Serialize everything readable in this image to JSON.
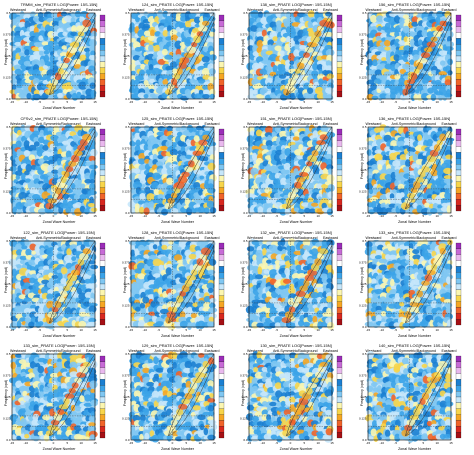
{
  "chart_data": [
    {
      "type": "heatmap",
      "title": "TRMM_sim_PRATE LOG[Power: 15S-15N]"
    },
    {
      "type": "heatmap",
      "title": "124_sim_PRATE LOG[Power: 15S-15N]"
    },
    {
      "type": "heatmap",
      "title": "138_sim_PRATE LOG[Power: 15S-15N]"
    },
    {
      "type": "heatmap",
      "title": "156_sim_PRATE LOG[Power: 15S-15N]"
    },
    {
      "type": "heatmap",
      "title": "CFSv2_sim_PRATE LOG[Power: 15S-15N]"
    },
    {
      "type": "heatmap",
      "title": "125_sim_PRATE LOG[Power: 15S-15N]"
    },
    {
      "type": "heatmap",
      "title": "151_sim_PRATE LOG[Power: 15S-15N]"
    },
    {
      "type": "heatmap",
      "title": "136_sim_PRATE LOG[Power: 15S-15N]"
    },
    {
      "type": "heatmap",
      "title": "122_sim_PRATE LOG[Power: 15S-15N]"
    },
    {
      "type": "heatmap",
      "title": "128_sim_PRATE LOG[Power: 15S-15N]"
    },
    {
      "type": "heatmap",
      "title": "132_sim_PRATE LOG[Power: 15S-15N]"
    },
    {
      "type": "heatmap",
      "title": "133_sim_PRATE LOG[Power: 15S-15N]"
    },
    {
      "type": "heatmap",
      "title": "133_sim_PRATE LOG[Power: 15S-15N]"
    },
    {
      "type": "heatmap",
      "title": "129_sim_PRATE LOG[Power: 15S-15N]"
    },
    {
      "type": "heatmap",
      "title": "130_sim_PRATE LOG[Power: 15S-15N]"
    },
    {
      "type": "heatmap",
      "title": "140_sim_PRATE LOG[Power: 15S-15N]"
    }
  ],
  "common": {
    "subtitle": "Anti-Symmetric/Background",
    "westward": "Westward",
    "eastward": "Eastward",
    "xlabel": "Zonal Wave Number",
    "ylabel": "Frequency (cpd)",
    "xticks": [
      "-15",
      "-10",
      "-5",
      "0",
      "5",
      "10",
      "15"
    ],
    "yticks": [
      "0.5",
      "0.475",
      "0.45",
      "0.425",
      "0.4",
      "0.375",
      "0.35",
      "0.325",
      "0.3",
      "0.275",
      "0.25",
      "0.225",
      "0.2",
      "0.175",
      "0.15",
      "0.125",
      "0.1",
      "0.075",
      "0.05",
      "0.025",
      "0.0"
    ],
    "xlim": [
      -15,
      15
    ],
    "ylim": [
      0,
      0.5
    ],
    "colorbar": [
      "#9b2cb8",
      "#c76ad6",
      "#e9b8ee",
      "#ffffff",
      "#1b7fd1",
      "#3ba3e8",
      "#7fc7f2",
      "#c6e7fb",
      "#fbf6b0",
      "#f7d54a",
      "#f5a623",
      "#f0642a",
      "#d8281f",
      "#a50f15"
    ]
  }
}
